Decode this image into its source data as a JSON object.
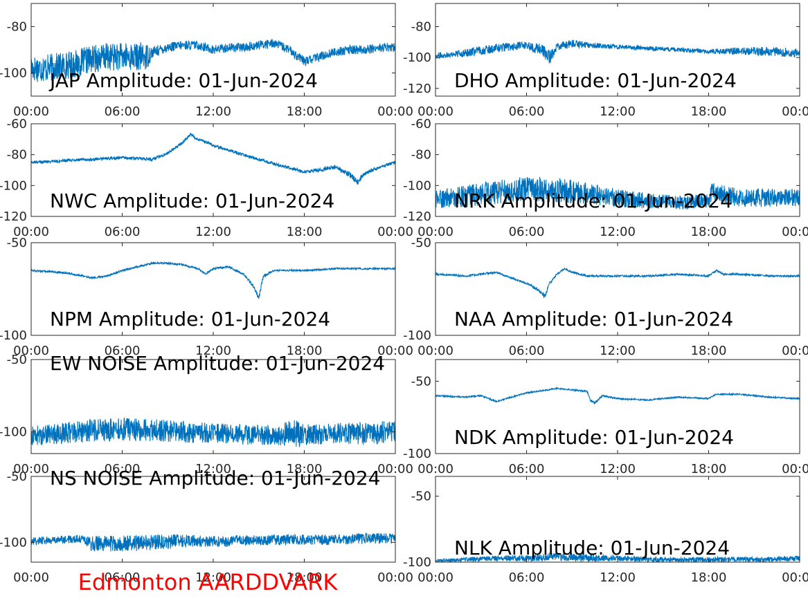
{
  "figure": {
    "footer_title": "Edmonton AARDDVARK",
    "footer_color": "#ff0000",
    "line_color": "#0072bd"
  },
  "chart_data": [
    {
      "type": "line",
      "title": "JAP Amplitude: 01-Jun-2024",
      "x_ticks": [
        "00:00",
        "06:00",
        "12:00",
        "18:00",
        "00:00"
      ],
      "y_ticks": [
        -80,
        -100
      ],
      "ylim": [
        -110,
        -70
      ],
      "grid": false,
      "series": [
        {
          "x": [
            0,
            1,
            2,
            3,
            4,
            5,
            6,
            7,
            7.6,
            8,
            9,
            10,
            11,
            12,
            13,
            14,
            15,
            16,
            17,
            18,
            19,
            20,
            21,
            22,
            23,
            24
          ],
          "y": [
            -98,
            -98,
            -97,
            -96,
            -94,
            -93,
            -93,
            -93,
            -93,
            -91,
            -89,
            -88,
            -88,
            -90,
            -89,
            -89,
            -88,
            -87,
            -90,
            -95,
            -93,
            -91,
            -90,
            -90,
            -89,
            -89
          ],
          "noise": [
            12,
            12,
            12,
            12,
            12,
            12,
            12,
            12,
            12,
            5,
            4,
            4,
            4,
            4,
            4,
            4,
            4,
            4,
            4,
            4,
            4,
            4,
            4,
            4,
            4,
            4
          ]
        }
      ]
    },
    {
      "type": "line",
      "title": "DHO Amplitude: 01-Jun-2024",
      "x_ticks": [
        "00:00",
        "06:00",
        "12:00",
        "18:00",
        "00:00"
      ],
      "y_ticks": [
        -80,
        -100,
        -120
      ],
      "ylim": [
        -125,
        -65
      ],
      "grid": false,
      "series": [
        {
          "x": [
            0,
            2,
            4,
            6,
            7,
            7.5,
            8,
            9,
            10,
            12,
            14,
            16,
            18,
            20,
            22,
            24
          ],
          "y": [
            -99,
            -97,
            -94,
            -92,
            -95,
            -100,
            -93,
            -91,
            -92,
            -93,
            -94,
            -95,
            -96,
            -96,
            -96,
            -97
          ],
          "noise": [
            4,
            5,
            6,
            5,
            8,
            10,
            5,
            5,
            4,
            3,
            3,
            3,
            3,
            5,
            6,
            6
          ]
        }
      ]
    },
    {
      "type": "line",
      "title": "NWC Amplitude: 01-Jun-2024",
      "x_ticks": [
        "00:00",
        "06:00",
        "12:00",
        "18:00",
        "00:00"
      ],
      "y_ticks": [
        -60,
        -80,
        -100,
        -120
      ],
      "ylim": [
        -120,
        -60
      ],
      "grid": false,
      "series": [
        {
          "x": [
            0,
            2,
            4,
            6,
            8,
            8.5,
            9,
            10,
            10.5,
            11,
            12,
            14,
            16,
            18,
            19,
            20,
            21,
            21.5,
            22,
            23,
            24
          ],
          "y": [
            -85,
            -84,
            -83,
            -82,
            -83,
            -81,
            -79,
            -72,
            -67,
            -70,
            -74,
            -80,
            -86,
            -91,
            -90,
            -88,
            -93,
            -98,
            -92,
            -88,
            -85
          ],
          "noise": [
            2,
            2,
            2,
            2,
            2,
            2,
            2,
            2,
            2,
            2,
            2,
            2,
            2,
            2,
            3,
            3,
            4,
            4,
            3,
            2,
            2
          ]
        }
      ]
    },
    {
      "type": "line",
      "title": "NRK Amplitude: 01-Jun-2024",
      "x_ticks": [
        "00:00",
        "06:00",
        "12:00",
        "18:00",
        "00:00"
      ],
      "y_ticks": [
        -60,
        -80,
        -100,
        -120
      ],
      "ylim": [
        -120,
        -60
      ],
      "grid": false,
      "series": [
        {
          "x": [
            0,
            2,
            4,
            6,
            8,
            10,
            12,
            14,
            16,
            18,
            18.2,
            20,
            22,
            24
          ],
          "y": [
            -109,
            -107,
            -104,
            -102,
            -103,
            -105,
            -108,
            -110,
            -111,
            -110,
            -104,
            -108,
            -108,
            -108
          ],
          "noise": [
            12,
            14,
            16,
            16,
            16,
            14,
            12,
            10,
            9,
            9,
            12,
            12,
            12,
            12
          ]
        }
      ]
    },
    {
      "type": "line",
      "title": "NPM Amplitude: 01-Jun-2024",
      "x_ticks": [
        "00:00",
        "06:00",
        "12:00",
        "18:00",
        "00:00"
      ],
      "y_ticks": [
        -50,
        -100
      ],
      "ylim": [
        -100,
        -50
      ],
      "grid": false,
      "series": [
        {
          "x": [
            0,
            2,
            3.5,
            4,
            5,
            6,
            7,
            8,
            9,
            10,
            11,
            11.5,
            12,
            13,
            14,
            14.7,
            15,
            15.3,
            16,
            18,
            20,
            22,
            24
          ],
          "y": [
            -65,
            -66,
            -68,
            -69,
            -68,
            -65,
            -63,
            -61,
            -61,
            -62,
            -64,
            -67,
            -64,
            -63,
            -67,
            -74,
            -80,
            -68,
            -65,
            -65,
            -64,
            -64,
            -64
          ],
          "noise": [
            1,
            1,
            1,
            1,
            1,
            1,
            1,
            1,
            1,
            1,
            1,
            1,
            1,
            1,
            1,
            2,
            3,
            2,
            1,
            1,
            1,
            1,
            1
          ]
        }
      ]
    },
    {
      "type": "line",
      "title": "NAA Amplitude: 01-Jun-2024",
      "x_ticks": [
        "00:00",
        "06:00",
        "12:00",
        "18:00",
        "00:00"
      ],
      "y_ticks": [
        -50,
        -100
      ],
      "ylim": [
        -100,
        -50
      ],
      "grid": false,
      "series": [
        {
          "x": [
            0,
            2,
            3,
            4,
            5,
            6,
            6.5,
            7,
            7.2,
            7.5,
            8,
            8.5,
            9,
            10,
            12,
            14,
            16,
            18,
            18.5,
            19,
            20,
            22,
            24
          ],
          "y": [
            -67,
            -68,
            -67,
            -66,
            -69,
            -72,
            -74,
            -77,
            -79,
            -72,
            -67,
            -64,
            -66,
            -68,
            -68,
            -68,
            -67,
            -68,
            -65,
            -67,
            -67,
            -68,
            -68
          ],
          "noise": [
            1,
            1,
            1,
            1,
            1,
            1,
            2,
            2,
            3,
            2,
            1,
            1,
            1,
            1,
            1,
            1,
            1,
            1,
            1,
            1,
            1,
            1,
            1
          ]
        }
      ]
    },
    {
      "type": "line",
      "title": "EW NOISE Amplitude: 01-Jun-2024",
      "x_ticks": [
        "00:00",
        "06:00",
        "12:00",
        "18:00",
        "00:00"
      ],
      "y_ticks": [
        -50,
        -100
      ],
      "ylim": [
        -115,
        -50
      ],
      "grid": false,
      "series": [
        {
          "x": [
            0,
            2,
            4,
            6,
            8,
            10,
            12,
            14,
            16,
            17.5,
            18,
            20,
            22,
            24
          ],
          "y": [
            -103,
            -101,
            -99,
            -98,
            -99,
            -100,
            -101,
            -102,
            -102,
            -101,
            -102,
            -101,
            -101,
            -100
          ],
          "noise": [
            14,
            14,
            16,
            16,
            16,
            15,
            14,
            14,
            14,
            20,
            14,
            14,
            16,
            16
          ]
        }
      ]
    },
    {
      "type": "line",
      "title": "NDK Amplitude: 01-Jun-2024",
      "x_ticks": [
        "00:00",
        "06:00",
        "12:00",
        "18:00",
        "00:00"
      ],
      "y_ticks": [
        -50,
        -100
      ],
      "ylim": [
        -100,
        -35
      ],
      "grid": false,
      "series": [
        {
          "x": [
            0,
            2,
            3,
            4,
            6,
            8,
            10,
            10.2,
            10.5,
            11,
            12,
            14,
            16,
            18,
            18.5,
            20,
            22,
            24
          ],
          "y": [
            -60,
            -61,
            -60,
            -64,
            -58,
            -55,
            -57,
            -63,
            -65,
            -60,
            -62,
            -63,
            -61,
            -62,
            -59,
            -59,
            -61,
            -62
          ],
          "noise": [
            1,
            1,
            1,
            1,
            1,
            1,
            1,
            2,
            2,
            1,
            1,
            1,
            1,
            1,
            1,
            1,
            1,
            1
          ]
        }
      ]
    },
    {
      "type": "line",
      "title": "NS NOISE Amplitude: 01-Jun-2024",
      "x_ticks": [
        "00:00",
        "06:00",
        "12:00",
        "18:00",
        "00:00"
      ],
      "y_ticks": [
        -50,
        -100
      ],
      "ylim": [
        -115,
        -50
      ],
      "grid": false,
      "series": [
        {
          "x": [
            0,
            2,
            3.4,
            4,
            6,
            8,
            10,
            12,
            13,
            13.5,
            14,
            16,
            18,
            20,
            22,
            24
          ],
          "y": [
            -99,
            -98,
            -97,
            -101,
            -101,
            -100,
            -99,
            -99,
            -100,
            -97,
            -99,
            -98,
            -98,
            -98,
            -97,
            -97
          ],
          "noise": [
            6,
            6,
            6,
            12,
            12,
            12,
            10,
            8,
            8,
            6,
            8,
            8,
            8,
            8,
            8,
            8
          ]
        }
      ]
    },
    {
      "type": "line",
      "title": "NLK Amplitude: 01-Jun-2024",
      "x_ticks": [
        "00:00",
        "06:00",
        "12:00",
        "18:00",
        "00:00"
      ],
      "y_ticks": [
        -50,
        -100
      ],
      "ylim": [
        -100,
        -35
      ],
      "grid": false,
      "series": [
        {
          "x": [
            0,
            2,
            4,
            6,
            8,
            10,
            12,
            14,
            16,
            18,
            20,
            22,
            24
          ],
          "y": [
            -99,
            -98,
            -97,
            -97,
            -96,
            -97,
            -97,
            -98,
            -98,
            -98,
            -98,
            -98,
            -97
          ],
          "noise": [
            2,
            3,
            4,
            5,
            6,
            6,
            4,
            4,
            4,
            4,
            4,
            4,
            4
          ]
        }
      ]
    }
  ]
}
